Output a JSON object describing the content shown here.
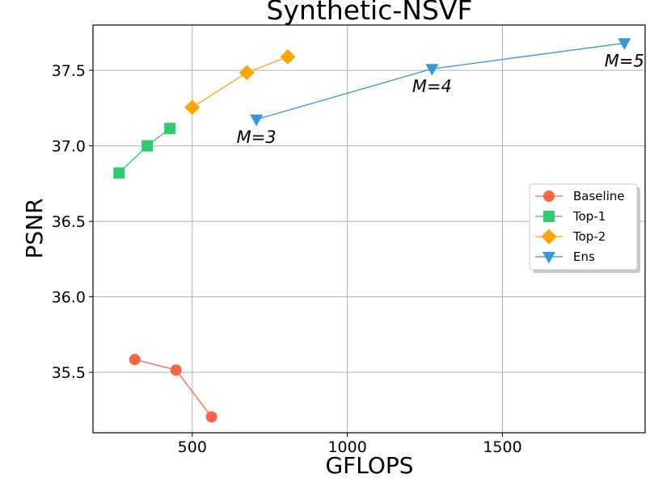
{
  "chart_data": {
    "type": "line",
    "title": "Synthetic-NSVF",
    "xlabel": "GFLOPS",
    "ylabel": "PSNR",
    "xlim": [
      180,
      1960
    ],
    "ylim": [
      35.1,
      37.8
    ],
    "xticks": [
      500,
      1000,
      1500
    ],
    "yticks": [
      35.5,
      36.0,
      36.5,
      37.0,
      37.5
    ],
    "xtick_labels": [
      "500",
      "1000",
      "1500"
    ],
    "ytick_labels": [
      "35.5",
      "36.0",
      "36.5",
      "37.0",
      "37.5"
    ],
    "grid": true,
    "legend_position": "center-right",
    "series": [
      {
        "name": "Baseline",
        "color": "#ff6347",
        "marker": "circle",
        "x": [
          315,
          448,
          562
        ],
        "y": [
          35.585,
          35.515,
          35.205
        ]
      },
      {
        "name": "Top-1",
        "color": "#2ecc71",
        "marker": "square",
        "x": [
          264,
          355,
          428
        ],
        "y": [
          36.82,
          37.0,
          37.115
        ]
      },
      {
        "name": "Top-2",
        "color": "#ffa500",
        "marker": "diamond",
        "x": [
          500,
          676,
          808
        ],
        "y": [
          37.255,
          37.485,
          37.59
        ]
      },
      {
        "name": "Ens",
        "color": "#3498db",
        "marker": "triangle-down",
        "x": [
          707,
          1273,
          1893
        ],
        "y": [
          37.175,
          37.51,
          37.68
        ]
      }
    ],
    "annotations": [
      {
        "text": "M=3",
        "x": 707,
        "y": 37.175
      },
      {
        "text": "M=4",
        "x": 1273,
        "y": 37.51
      },
      {
        "text": "M=5",
        "x": 1893,
        "y": 37.68
      }
    ]
  }
}
